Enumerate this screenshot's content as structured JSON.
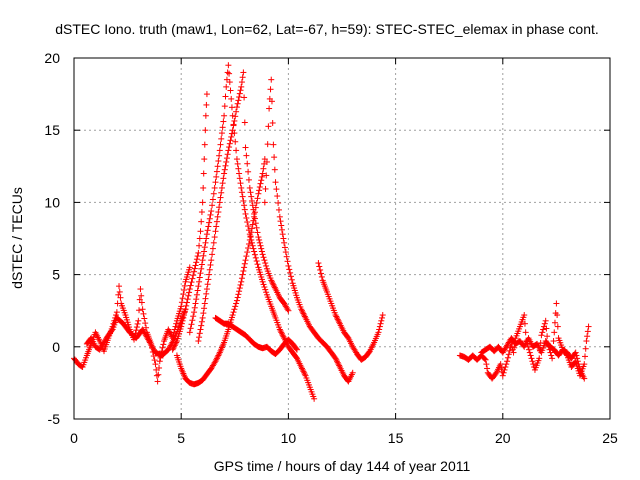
{
  "chart_data": {
    "type": "scatter",
    "title": "dSTEC Iono. truth (maw1, Lon=62, Lat=-67, h=59): STEC-STEC_elemax in phase cont.",
    "xlabel": "GPS time / hours of day 144 of year 2011",
    "ylabel": "dSTEC  / TECUs",
    "xlim": [
      0,
      25
    ],
    "ylim": [
      -5,
      20
    ],
    "xticks": [
      0,
      5,
      10,
      15,
      20,
      25
    ],
    "yticks": [
      -5,
      0,
      5,
      10,
      15,
      20
    ],
    "grid": true,
    "marker": "+",
    "colors": {
      "series": "#ff0000",
      "grid": "#a0a0a0",
      "axes": "#000000"
    },
    "series_segments": [
      [
        [
          0.0,
          -0.8
        ],
        [
          0.2,
          -1.2
        ],
        [
          0.4,
          -1.4
        ],
        [
          0.6,
          -0.6
        ],
        [
          0.8,
          0.2
        ],
        [
          1.0,
          1.0
        ],
        [
          1.2,
          0.4
        ],
        [
          1.4,
          -0.3
        ],
        [
          1.6,
          0.6
        ],
        [
          1.8,
          1.4
        ],
        [
          2.0,
          2.4
        ],
        [
          2.1,
          4.2
        ],
        [
          2.2,
          3.0
        ],
        [
          2.4,
          2.2
        ],
        [
          2.6,
          1.2
        ],
        [
          2.8,
          0.5
        ],
        [
          3.0,
          1.8
        ],
        [
          3.1,
          4.0
        ],
        [
          3.2,
          2.6
        ],
        [
          3.4,
          1.0
        ],
        [
          3.6,
          0.2
        ],
        [
          3.8,
          -1.2
        ],
        [
          3.9,
          -2.4
        ],
        [
          4.0,
          -1.0
        ],
        [
          4.2,
          0.4
        ],
        [
          4.4,
          1.2
        ],
        [
          4.6,
          0.6
        ],
        [
          4.8,
          1.8
        ],
        [
          5.0,
          2.8
        ],
        [
          5.2,
          4.5
        ],
        [
          5.4,
          5.5
        ]
      ],
      [
        [
          0.6,
          0.2
        ],
        [
          0.8,
          0.6
        ],
        [
          1.0,
          0.0
        ],
        [
          1.2,
          -0.2
        ],
        [
          1.4,
          0.3
        ],
        [
          1.6,
          0.8
        ],
        [
          1.8,
          1.2
        ],
        [
          2.0,
          2.0
        ],
        [
          2.3,
          1.6
        ],
        [
          2.6,
          1.0
        ],
        [
          2.9,
          0.6
        ],
        [
          3.2,
          1.2
        ],
        [
          3.5,
          0.4
        ],
        [
          3.8,
          -0.4
        ],
        [
          4.1,
          -0.6
        ],
        [
          4.4,
          -0.2
        ],
        [
          4.7,
          0.6
        ],
        [
          5.0,
          1.8
        ],
        [
          5.2,
          2.6
        ]
      ],
      [
        [
          4.6,
          -0.2
        ],
        [
          4.8,
          0.4
        ],
        [
          5.0,
          1.4
        ],
        [
          5.2,
          2.6
        ],
        [
          5.4,
          4.0
        ],
        [
          5.6,
          5.2
        ],
        [
          5.8,
          6.5
        ],
        [
          5.9,
          8.0
        ],
        [
          6.0,
          10.0
        ],
        [
          6.05,
          12.0
        ],
        [
          6.1,
          14.0
        ],
        [
          6.15,
          16.0
        ],
        [
          6.2,
          17.5
        ]
      ],
      [
        [
          4.8,
          -0.6
        ],
        [
          5.0,
          -1.5
        ],
        [
          5.2,
          -2.2
        ],
        [
          5.4,
          -2.5
        ],
        [
          5.6,
          -2.6
        ],
        [
          5.8,
          -2.5
        ],
        [
          6.0,
          -2.3
        ],
        [
          6.2,
          -1.9
        ],
        [
          6.4,
          -1.5
        ],
        [
          6.6,
          -1.0
        ],
        [
          6.8,
          -0.4
        ],
        [
          7.0,
          0.3
        ],
        [
          7.2,
          1.2
        ],
        [
          7.4,
          2.2
        ],
        [
          7.6,
          3.2
        ],
        [
          7.8,
          4.5
        ],
        [
          8.0,
          6.0
        ],
        [
          8.2,
          7.4
        ],
        [
          8.4,
          9.0
        ],
        [
          8.6,
          10.6
        ],
        [
          8.8,
          12.0
        ],
        [
          8.9,
          13.0
        ]
      ],
      [
        [
          5.4,
          1.0
        ],
        [
          5.6,
          2.4
        ],
        [
          5.8,
          4.2
        ],
        [
          6.0,
          6.0
        ],
        [
          6.2,
          7.8
        ],
        [
          6.4,
          9.4
        ],
        [
          6.6,
          11.4
        ],
        [
          6.8,
          13.6
        ],
        [
          7.0,
          16.0
        ],
        [
          7.1,
          18.0
        ],
        [
          7.2,
          19.5
        ],
        [
          7.4,
          16.0
        ],
        [
          7.6,
          13.0
        ],
        [
          7.8,
          11.0
        ],
        [
          8.0,
          9.2
        ],
        [
          8.2,
          7.8
        ],
        [
          8.4,
          6.6
        ],
        [
          8.6,
          5.5
        ],
        [
          8.8,
          4.5
        ],
        [
          9.0,
          3.6
        ],
        [
          9.2,
          2.8
        ],
        [
          9.4,
          2.0
        ],
        [
          9.6,
          1.2
        ],
        [
          9.8,
          0.6
        ],
        [
          10.0,
          0.0
        ],
        [
          10.2,
          -0.4
        ],
        [
          10.4,
          -0.8
        ],
        [
          10.6,
          -1.4
        ],
        [
          10.8,
          -2.0
        ],
        [
          11.0,
          -2.8
        ],
        [
          11.2,
          -3.6
        ]
      ],
      [
        [
          5.8,
          0.4
        ],
        [
          6.0,
          2.0
        ],
        [
          6.2,
          4.0
        ],
        [
          6.4,
          6.0
        ],
        [
          6.6,
          8.0
        ],
        [
          6.8,
          10.0
        ],
        [
          7.0,
          12.0
        ],
        [
          7.2,
          13.6
        ],
        [
          7.4,
          15.0
        ],
        [
          7.6,
          16.6
        ],
        [
          7.8,
          18.0
        ],
        [
          7.9,
          19.0
        ],
        [
          8.0,
          13.8
        ],
        [
          8.2,
          11.0
        ],
        [
          8.4,
          9.2
        ],
        [
          8.6,
          7.6
        ],
        [
          8.8,
          6.4
        ],
        [
          9.0,
          5.4
        ],
        [
          9.2,
          4.6
        ],
        [
          9.4,
          4.0
        ],
        [
          9.6,
          3.4
        ],
        [
          9.8,
          3.0
        ],
        [
          10.0,
          2.5
        ]
      ],
      [
        [
          6.6,
          2.0
        ],
        [
          6.8,
          1.8
        ],
        [
          7.0,
          1.6
        ],
        [
          7.2,
          1.6
        ],
        [
          7.4,
          1.4
        ],
        [
          7.6,
          1.2
        ],
        [
          7.8,
          1.0
        ],
        [
          8.0,
          0.8
        ],
        [
          8.2,
          0.5
        ],
        [
          8.4,
          0.2
        ],
        [
          8.6,
          0.0
        ],
        [
          8.8,
          -0.1
        ],
        [
          9.0,
          0.0
        ],
        [
          9.2,
          -0.3
        ],
        [
          9.4,
          -0.5
        ],
        [
          9.6,
          -0.2
        ],
        [
          9.8,
          0.2
        ],
        [
          10.0,
          0.5
        ],
        [
          10.2,
          0.2
        ],
        [
          10.4,
          -0.2
        ]
      ],
      [
        [
          8.9,
          10.0
        ],
        [
          9.0,
          12.8
        ],
        [
          9.1,
          16.5
        ],
        [
          9.2,
          18.5
        ],
        [
          9.3,
          14.0
        ],
        [
          9.4,
          11.4
        ],
        [
          9.6,
          9.0
        ],
        [
          9.8,
          7.2
        ],
        [
          10.0,
          5.6
        ],
        [
          10.2,
          4.4
        ],
        [
          10.4,
          3.4
        ],
        [
          10.6,
          2.6
        ],
        [
          10.8,
          2.0
        ],
        [
          11.0,
          1.4
        ],
        [
          11.2,
          1.0
        ],
        [
          11.4,
          0.6
        ],
        [
          11.6,
          0.3
        ],
        [
          11.8,
          0.0
        ],
        [
          12.0,
          -0.4
        ],
        [
          12.2,
          -0.8
        ],
        [
          12.4,
          -1.4
        ],
        [
          12.6,
          -2.0
        ],
        [
          12.8,
          -2.4
        ],
        [
          13.0,
          -1.8
        ]
      ],
      [
        [
          11.4,
          5.8
        ],
        [
          11.6,
          4.6
        ],
        [
          11.8,
          3.8
        ],
        [
          12.0,
          3.0
        ],
        [
          12.2,
          2.2
        ],
        [
          12.4,
          1.6
        ],
        [
          12.6,
          1.0
        ],
        [
          12.8,
          0.6
        ],
        [
          13.0,
          0.0
        ],
        [
          13.2,
          -0.5
        ],
        [
          13.4,
          -0.9
        ],
        [
          13.6,
          -0.7
        ],
        [
          13.8,
          -0.3
        ],
        [
          14.0,
          0.3
        ],
        [
          14.2,
          1.0
        ],
        [
          14.3,
          1.6
        ],
        [
          14.4,
          2.2
        ]
      ],
      [
        [
          18.0,
          -0.6
        ],
        [
          18.2,
          -0.7
        ],
        [
          18.4,
          -0.9
        ],
        [
          18.6,
          -0.6
        ],
        [
          18.8,
          -0.9
        ],
        [
          19.0,
          -0.6
        ],
        [
          19.2,
          -0.9
        ],
        [
          19.3,
          -1.8
        ],
        [
          19.5,
          -2.2
        ],
        [
          19.7,
          -1.8
        ],
        [
          19.9,
          -1.2
        ],
        [
          20.0,
          -2.0
        ],
        [
          20.2,
          -1.0
        ],
        [
          20.4,
          0.2
        ],
        [
          20.5,
          -0.4
        ],
        [
          20.6,
          0.6
        ],
        [
          20.8,
          1.4
        ],
        [
          21.0,
          2.2
        ],
        [
          21.1,
          0.4
        ],
        [
          21.3,
          -0.6
        ],
        [
          21.5,
          -1.6
        ],
        [
          21.7,
          -0.8
        ],
        [
          21.8,
          0.8
        ],
        [
          22.0,
          1.8
        ],
        [
          22.1,
          0.2
        ],
        [
          22.3,
          -0.8
        ],
        [
          22.4,
          1.0
        ],
        [
          22.5,
          3.0
        ],
        [
          22.6,
          0.6
        ],
        [
          22.8,
          -0.2
        ],
        [
          23.0,
          -0.6
        ],
        [
          23.2,
          -1.4
        ],
        [
          23.4,
          -1.0
        ],
        [
          23.6,
          -2.0
        ],
        [
          23.8,
          -1.2
        ],
        [
          23.9,
          0.4
        ],
        [
          24.0,
          1.4
        ]
      ],
      [
        [
          19.0,
          -0.4
        ],
        [
          19.2,
          -0.2
        ],
        [
          19.4,
          0.0
        ],
        [
          19.6,
          -0.3
        ],
        [
          19.8,
          0.0
        ],
        [
          20.0,
          -0.4
        ],
        [
          20.2,
          0.1
        ],
        [
          20.4,
          0.6
        ],
        [
          20.6,
          0.2
        ],
        [
          20.8,
          0.4
        ],
        [
          21.0,
          0.0
        ],
        [
          21.2,
          0.6
        ],
        [
          21.4,
          0.0
        ],
        [
          21.6,
          0.2
        ],
        [
          21.8,
          -0.4
        ],
        [
          22.0,
          0.4
        ],
        [
          22.2,
          0.0
        ],
        [
          22.4,
          -0.2
        ],
        [
          22.6,
          -0.6
        ],
        [
          22.8,
          -0.2
        ],
        [
          23.0,
          -0.4
        ],
        [
          23.2,
          -0.8
        ],
        [
          23.4,
          -0.4
        ],
        [
          23.6,
          -1.6
        ],
        [
          23.8,
          -2.2
        ]
      ]
    ]
  }
}
